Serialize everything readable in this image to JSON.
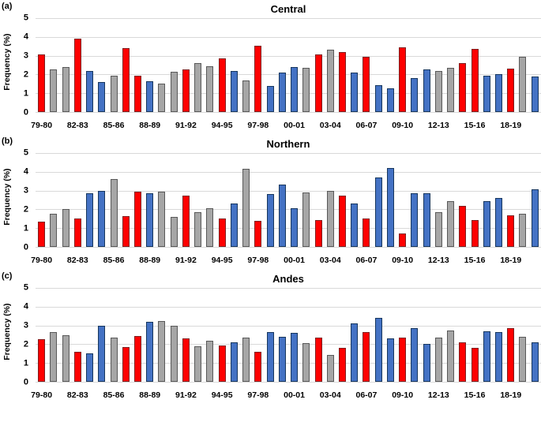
{
  "palette": {
    "red": "#FF0000",
    "gray": "#A6A6A6",
    "blue": "#4472C4",
    "red_border": "#7F1D1D",
    "gray_border": "#595959",
    "blue_border": "#17375E",
    "gridline": "#D9D9D9",
    "text": "#000000"
  },
  "axes": {
    "ylabel": "Frequency (%)",
    "ylim": [
      0,
      5
    ],
    "yticks": [
      "5",
      "4",
      "3",
      "2",
      "1",
      "0"
    ],
    "x_tick_labels": [
      "79-80",
      "82-83",
      "85-86",
      "88-89",
      "91-92",
      "94-95",
      "97-98",
      "00-01",
      "03-04",
      "06-07",
      "09-10",
      "12-13",
      "15-16",
      "18-19"
    ],
    "x_tick_positions": [
      0,
      3,
      6,
      9,
      12,
      15,
      18,
      21,
      24,
      27,
      30,
      33,
      36,
      39
    ]
  },
  "bar_color_sequence": [
    "red",
    "gray",
    "gray",
    "red",
    "blue",
    "blue",
    "gray",
    "red",
    "red",
    "blue",
    "gray",
    "gray",
    "red",
    "gray",
    "gray",
    "red",
    "blue",
    "gray",
    "red",
    "blue",
    "blue",
    "blue",
    "gray",
    "red",
    "gray",
    "red",
    "blue",
    "red",
    "blue",
    "blue",
    "red",
    "blue",
    "blue",
    "gray",
    "gray",
    "red",
    "red",
    "blue",
    "blue",
    "red",
    "gray",
    "blue"
  ],
  "chart_data": [
    {
      "type": "bar",
      "letter": "(a)",
      "title": "Central",
      "ylabel": "Frequency (%)",
      "n_bars": 42,
      "values": [
        3.05,
        2.25,
        2.4,
        3.9,
        2.2,
        1.6,
        1.95,
        3.4,
        1.95,
        1.65,
        1.5,
        2.15,
        2.25,
        2.6,
        2.45,
        2.85,
        2.2,
        1.7,
        3.55,
        1.4,
        2.1,
        2.4,
        2.35,
        3.05,
        3.3,
        3.2,
        2.1,
        2.95,
        1.45,
        1.25,
        3.45,
        1.8,
        2.25,
        2.2,
        2.35,
        2.6,
        3.35,
        1.95,
        2.0,
        2.3,
        2.95,
        1.9
      ]
    },
    {
      "type": "bar",
      "letter": "(b)",
      "title": "Northern",
      "ylabel": "Frequency (%)",
      "n_bars": 42,
      "values": [
        1.35,
        1.75,
        2.0,
        1.5,
        2.85,
        3.0,
        3.6,
        1.65,
        2.95,
        2.85,
        2.95,
        1.6,
        2.75,
        1.85,
        2.05,
        1.5,
        2.3,
        4.15,
        1.4,
        2.8,
        3.3,
        2.05,
        2.9,
        1.45,
        3.0,
        2.75,
        2.3,
        1.5,
        3.7,
        4.2,
        0.7,
        2.85,
        2.85,
        1.85,
        2.45,
        2.2,
        1.45,
        2.45,
        2.6,
        1.7,
        1.75,
        3.05
      ]
    },
    {
      "type": "bar",
      "letter": "(c)",
      "title": "Andes",
      "ylabel": "Frequency (%)",
      "n_bars": 42,
      "values": [
        2.25,
        2.65,
        2.5,
        1.6,
        1.5,
        3.0,
        2.35,
        1.85,
        2.45,
        3.2,
        3.25,
        3.0,
        2.3,
        1.9,
        2.2,
        1.95,
        2.1,
        2.35,
        1.6,
        2.65,
        2.4,
        2.6,
        2.05,
        2.35,
        1.45,
        1.8,
        3.1,
        2.65,
        3.4,
        2.3,
        2.35,
        2.85,
        2.0,
        2.35,
        2.75,
        2.1,
        1.8,
        2.7,
        2.65,
        2.85,
        2.4,
        2.1
      ]
    }
  ]
}
